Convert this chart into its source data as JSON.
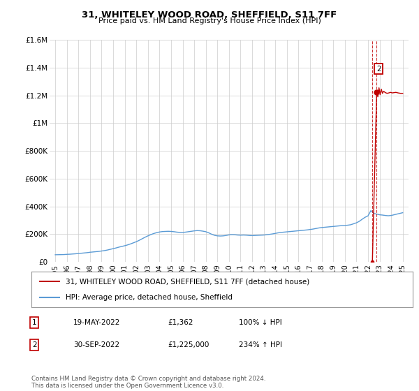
{
  "title": "31, WHITELEY WOOD ROAD, SHEFFIELD, S11 7FF",
  "subtitle": "Price paid vs. HM Land Registry's House Price Index (HPI)",
  "legend_line1": "31, WHITELEY WOOD ROAD, SHEFFIELD, S11 7FF (detached house)",
  "legend_line2": "HPI: Average price, detached house, Sheffield",
  "footnote": "Contains HM Land Registry data © Crown copyright and database right 2024.\nThis data is licensed under the Open Government Licence v3.0.",
  "table_rows": [
    {
      "num": "1",
      "date": "19-MAY-2022",
      "price": "£1,362",
      "pct": "100% ↓ HPI"
    },
    {
      "num": "2",
      "date": "30-SEP-2022",
      "price": "£1,225,000",
      "pct": "234% ↑ HPI"
    }
  ],
  "hpi_x": [
    1995.0,
    1995.25,
    1995.5,
    1995.75,
    1996.0,
    1996.25,
    1996.5,
    1996.75,
    1997.0,
    1997.25,
    1997.5,
    1997.75,
    1998.0,
    1998.25,
    1998.5,
    1998.75,
    1999.0,
    1999.25,
    1999.5,
    1999.75,
    2000.0,
    2000.25,
    2000.5,
    2000.75,
    2001.0,
    2001.25,
    2001.5,
    2001.75,
    2002.0,
    2002.25,
    2002.5,
    2002.75,
    2003.0,
    2003.25,
    2003.5,
    2003.75,
    2004.0,
    2004.25,
    2004.5,
    2004.75,
    2005.0,
    2005.25,
    2005.5,
    2005.75,
    2006.0,
    2006.25,
    2006.5,
    2006.75,
    2007.0,
    2007.25,
    2007.5,
    2007.75,
    2008.0,
    2008.25,
    2008.5,
    2008.75,
    2009.0,
    2009.25,
    2009.5,
    2009.75,
    2010.0,
    2010.25,
    2010.5,
    2010.75,
    2011.0,
    2011.25,
    2011.5,
    2011.75,
    2012.0,
    2012.25,
    2012.5,
    2012.75,
    2013.0,
    2013.25,
    2013.5,
    2013.75,
    2014.0,
    2014.25,
    2014.5,
    2014.75,
    2015.0,
    2015.25,
    2015.5,
    2015.75,
    2016.0,
    2016.25,
    2016.5,
    2016.75,
    2017.0,
    2017.25,
    2017.5,
    2017.75,
    2018.0,
    2018.25,
    2018.5,
    2018.75,
    2019.0,
    2019.25,
    2019.5,
    2019.75,
    2020.0,
    2020.25,
    2020.5,
    2020.75,
    2021.0,
    2021.25,
    2021.5,
    2021.75,
    2022.0,
    2022.25,
    2022.5,
    2022.75,
    2023.0,
    2023.25,
    2023.5,
    2023.75,
    2024.0,
    2024.25,
    2024.5,
    2024.75,
    2025.0
  ],
  "hpi_y": [
    52000,
    52500,
    53000,
    53500,
    55000,
    56000,
    57500,
    59000,
    61000,
    63000,
    65000,
    67000,
    70000,
    72000,
    74000,
    76000,
    79000,
    82000,
    86000,
    91000,
    96000,
    101000,
    107000,
    112000,
    117000,
    123000,
    130000,
    138000,
    146000,
    156000,
    167000,
    178000,
    188000,
    197000,
    205000,
    211000,
    216000,
    219000,
    220000,
    221000,
    220000,
    218000,
    215000,
    213000,
    213000,
    215000,
    218000,
    221000,
    224000,
    226000,
    225000,
    222000,
    218000,
    210000,
    200000,
    192000,
    188000,
    187000,
    188000,
    191000,
    195000,
    197000,
    196000,
    194000,
    193000,
    194000,
    193000,
    191000,
    190000,
    191000,
    192000,
    193000,
    194000,
    196000,
    199000,
    202000,
    206000,
    210000,
    213000,
    215000,
    217000,
    219000,
    221000,
    223000,
    225000,
    227000,
    229000,
    231000,
    234000,
    237000,
    241000,
    245000,
    248000,
    250000,
    252000,
    254000,
    256000,
    258000,
    260000,
    262000,
    263000,
    265000,
    268000,
    275000,
    282000,
    293000,
    308000,
    322000,
    332000,
    370000,
    350000,
    345000,
    340000,
    338000,
    335000,
    333000,
    335000,
    340000,
    345000,
    350000,
    355000
  ],
  "sale1_x": 2022.38,
  "sale1_y": 1362,
  "sale2_x": 2022.75,
  "sale2_y": 1225000,
  "red_x_after": [
    2022.75,
    2022.85,
    2022.95,
    2023.05,
    2023.15,
    2023.25,
    2023.35,
    2023.5,
    2023.65,
    2023.8,
    2023.95,
    2024.1,
    2024.25,
    2024.4,
    2024.6,
    2024.8,
    2025.0
  ],
  "red_y_after": [
    1225000,
    1190000,
    1255000,
    1205000,
    1245000,
    1215000,
    1230000,
    1220000,
    1215000,
    1218000,
    1222000,
    1218000,
    1220000,
    1222000,
    1218000,
    1215000,
    1215000
  ],
  "hpi_color": "#5b9bd5",
  "sale_color": "#c00000",
  "dashed_color": "#c00000",
  "ylim": [
    0,
    1600000
  ],
  "xlim": [
    1994.5,
    2025.5
  ],
  "yticks": [
    0,
    200000,
    400000,
    600000,
    800000,
    1000000,
    1200000,
    1400000,
    1600000
  ],
  "ytick_labels": [
    "£0",
    "£200K",
    "£400K",
    "£600K",
    "£800K",
    "£1M",
    "£1.2M",
    "£1.4M",
    "£1.6M"
  ],
  "xtick_years": [
    1995,
    1996,
    1997,
    1998,
    1999,
    2000,
    2001,
    2002,
    2003,
    2004,
    2005,
    2006,
    2007,
    2008,
    2009,
    2010,
    2011,
    2012,
    2013,
    2014,
    2015,
    2016,
    2017,
    2018,
    2019,
    2020,
    2021,
    2022,
    2023,
    2024,
    2025
  ],
  "bg_color": "#ffffff",
  "grid_color": "#cccccc",
  "label2_box_color": "#c00000"
}
